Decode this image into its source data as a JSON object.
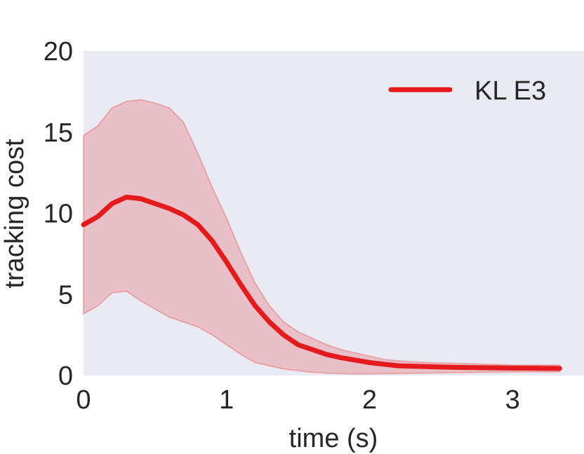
{
  "chart_data": {
    "type": "line",
    "title": "",
    "xlabel": "time (s)",
    "ylabel": "tracking cost",
    "xlim": [
      0,
      3.5
    ],
    "ylim": [
      0,
      20
    ],
    "xticks": [
      0,
      1,
      2,
      3
    ],
    "yticks": [
      0,
      5,
      10,
      15,
      20
    ],
    "grid": false,
    "legend_position": "top-right",
    "background_color": "#EAEAF2",
    "series": [
      {
        "name": "KL E3",
        "color": "#E41A1C",
        "x": [
          0,
          0.1,
          0.2,
          0.3,
          0.4,
          0.5,
          0.6,
          0.7,
          0.8,
          0.9,
          1.0,
          1.1,
          1.2,
          1.3,
          1.4,
          1.5,
          1.6,
          1.7,
          1.8,
          1.9,
          2.0,
          2.1,
          2.2,
          2.4,
          2.6,
          2.8,
          3.0,
          3.2,
          3.33
        ],
        "y": [
          9.3,
          9.8,
          10.6,
          11.0,
          10.9,
          10.6,
          10.3,
          9.9,
          9.3,
          8.3,
          7.0,
          5.6,
          4.3,
          3.3,
          2.5,
          1.9,
          1.6,
          1.3,
          1.1,
          0.95,
          0.8,
          0.7,
          0.6,
          0.55,
          0.5,
          0.48,
          0.46,
          0.45,
          0.44
        ],
        "lower": [
          3.8,
          4.3,
          5.1,
          5.2,
          4.6,
          4.1,
          3.6,
          3.3,
          3.0,
          2.5,
          1.9,
          1.3,
          0.8,
          0.6,
          0.4,
          0.3,
          0.2,
          0.15,
          0.12,
          0.1,
          0.1,
          0.12,
          0.12,
          0.15,
          0.18,
          0.2,
          0.22,
          0.22,
          0.22
        ],
        "upper": [
          14.8,
          15.4,
          16.5,
          16.9,
          17.0,
          16.8,
          16.5,
          15.6,
          13.7,
          11.6,
          9.7,
          7.6,
          5.7,
          4.3,
          3.3,
          2.7,
          2.3,
          1.9,
          1.6,
          1.4,
          1.2,
          1.0,
          0.9,
          0.8,
          0.75,
          0.7,
          0.65,
          0.65,
          0.65
        ]
      }
    ]
  }
}
